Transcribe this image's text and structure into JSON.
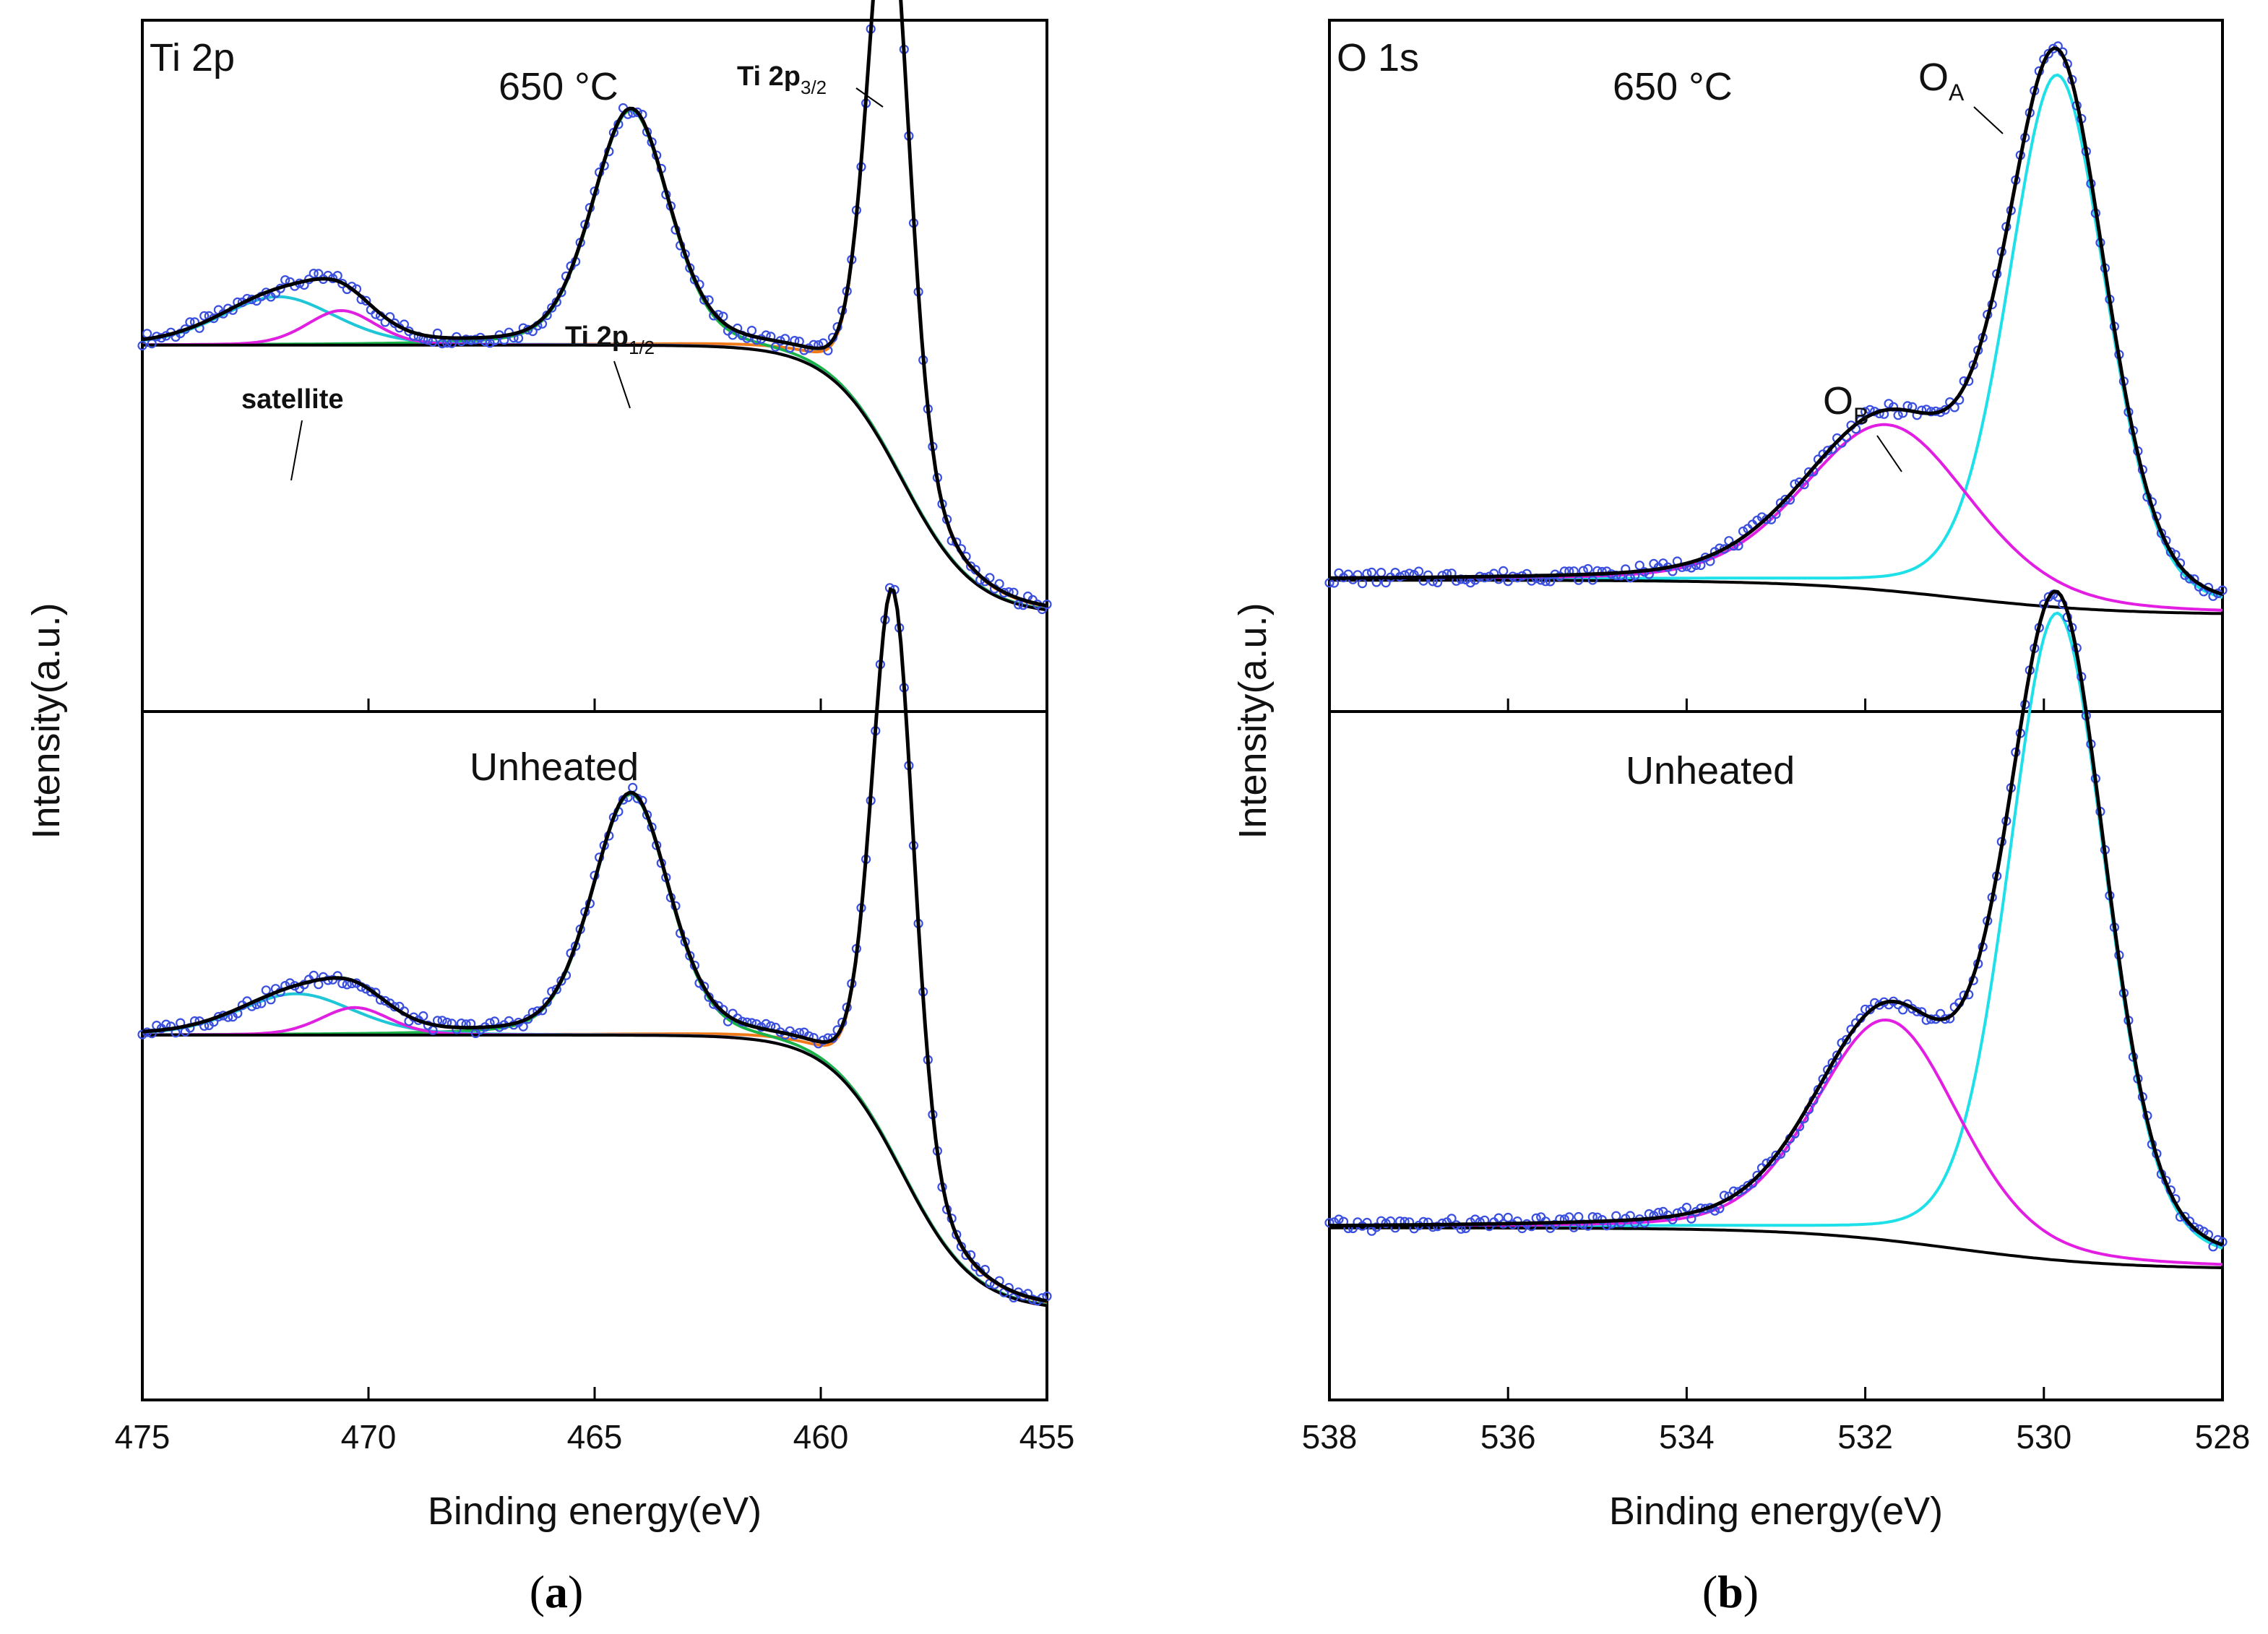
{
  "chart_data": [
    {
      "id": "a",
      "type": "line",
      "panel_label": "a",
      "xlabel": "Binding energy(eV)",
      "ylabel": "Intensity(a.u.)",
      "xlim": [
        475,
        455
      ],
      "xticks": [
        "475",
        "470",
        "465",
        "460",
        "455"
      ],
      "top": {
        "element": "Ti 2p",
        "condition": "650 °C",
        "annotations": {
          "satellite": "satellite",
          "p12_base": "Ti 2p",
          "p12_sub": "1/2",
          "p32_base": "Ti 2p",
          "p32_sub": "3/2"
        },
        "background": {
          "high": 0.53,
          "low": 0.14,
          "center": 458.2,
          "width": 0.8
        },
        "peaks": [
          {
            "name": "Ti 2p3/2",
            "center": 458.5,
            "height": 0.82,
            "fwhm": 1.1,
            "color": "#f07a1a"
          },
          {
            "name": "Ti 2p1/2",
            "center": 464.2,
            "height": 0.34,
            "fwhm": 2.0,
            "color": "#19b34a"
          },
          {
            "name": "satellite",
            "center": 472.0,
            "height": 0.07,
            "fwhm": 3.0,
            "color": "#1fc6d8"
          },
          {
            "name": "satellite2",
            "center": 470.6,
            "height": 0.05,
            "fwhm": 1.8,
            "color": "#e020e0"
          }
        ]
      },
      "bottom": {
        "condition": "Unheated",
        "background": {
          "high": 0.53,
          "low": 0.13,
          "center": 458.2,
          "width": 0.8
        },
        "peaks": [
          {
            "name": "Ti 2p3/2",
            "center": 458.4,
            "height": 0.82,
            "fwhm": 1.1,
            "color": "#f07a1a"
          },
          {
            "name": "Ti 2p1/2",
            "center": 464.2,
            "height": 0.35,
            "fwhm": 2.0,
            "color": "#19b34a"
          },
          {
            "name": "satellite",
            "center": 471.6,
            "height": 0.06,
            "fwhm": 3.0,
            "color": "#1fc6d8"
          },
          {
            "name": "satellite2",
            "center": 470.3,
            "height": 0.04,
            "fwhm": 1.8,
            "color": "#e020e0"
          }
        ]
      }
    },
    {
      "id": "b",
      "type": "line",
      "panel_label": "b",
      "xlabel": "Binding energy(eV)",
      "ylabel": "Intensity(a.u.)",
      "xlim": [
        538,
        528
      ],
      "xticks": [
        "538",
        "536",
        "534",
        "532",
        "530",
        "528"
      ],
      "top": {
        "element": "O 1s",
        "condition": "650 °C",
        "annotations": {
          "oa_base": "O",
          "oa_sub": "A",
          "ob_base": "O",
          "ob_sub": "B"
        },
        "background": {
          "high": 0.19,
          "low": 0.14,
          "center": 531.0,
          "width": 0.9
        },
        "peaks": [
          {
            "name": "OA",
            "center": 529.85,
            "height": 0.77,
            "fwhm": 1.3,
            "color": "#1de0e8"
          },
          {
            "name": "OB",
            "center": 531.75,
            "height": 0.24,
            "fwhm": 2.2,
            "color": "#e31ee3"
          }
        ]
      },
      "bottom": {
        "condition": "Unheated",
        "background": {
          "high": 0.25,
          "low": 0.19,
          "center": 531.0,
          "width": 0.9
        },
        "peaks": [
          {
            "name": "OA",
            "center": 529.85,
            "height": 0.94,
            "fwhm": 1.3,
            "color": "#1de0e8"
          },
          {
            "name": "OB",
            "center": 531.75,
            "height": 0.32,
            "fwhm": 1.9,
            "color": "#e31ee3"
          }
        ]
      }
    }
  ]
}
